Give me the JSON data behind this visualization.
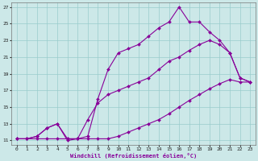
{
  "xlabel": "Windchill (Refroidissement éolien,°C)",
  "background_color": "#cce8e8",
  "grid_color": "#99cccc",
  "line_color": "#880099",
  "xlim_min": -0.5,
  "xlim_max": 23.5,
  "ylim_min": 10.5,
  "ylim_max": 27.5,
  "yticks": [
    11,
    13,
    15,
    17,
    19,
    21,
    23,
    25,
    27
  ],
  "xticks": [
    0,
    1,
    2,
    3,
    4,
    5,
    6,
    7,
    8,
    9,
    10,
    11,
    12,
    13,
    14,
    15,
    16,
    17,
    18,
    19,
    20,
    21,
    22,
    23
  ],
  "line1_x": [
    0,
    1,
    2,
    3,
    4,
    5,
    6,
    7,
    8,
    9,
    10,
    11,
    12,
    13,
    14,
    15,
    16,
    17,
    18,
    19,
    20,
    21,
    22,
    23
  ],
  "line1_y": [
    11.2,
    11.2,
    11.2,
    11.2,
    11.2,
    11.2,
    11.2,
    11.2,
    11.2,
    11.2,
    11.5,
    12.0,
    12.5,
    13.0,
    13.5,
    14.2,
    15.0,
    15.8,
    16.5,
    17.2,
    17.8,
    18.3,
    18.0,
    18.0
  ],
  "line2_x": [
    0,
    1,
    2,
    3,
    4,
    5,
    6,
    7,
    8,
    9,
    10,
    11,
    12,
    13,
    14,
    15,
    16,
    17,
    18,
    19,
    20,
    21,
    22,
    23
  ],
  "line2_y": [
    11.2,
    11.2,
    11.5,
    12.5,
    13.0,
    11.2,
    11.2,
    13.5,
    15.5,
    16.5,
    17.0,
    17.5,
    18.0,
    18.5,
    19.5,
    20.5,
    21.0,
    21.8,
    22.5,
    23.0,
    22.5,
    21.5,
    18.5,
    18.0
  ],
  "line3_x": [
    0,
    1,
    2,
    3,
    4,
    5,
    6,
    7,
    8,
    9,
    10,
    11,
    12,
    13,
    14,
    15,
    16,
    17,
    18,
    19,
    20,
    21,
    22,
    23
  ],
  "line3_y": [
    11.2,
    11.2,
    11.5,
    12.5,
    13.0,
    11.0,
    11.2,
    11.5,
    16.0,
    19.5,
    21.5,
    22.0,
    22.5,
    23.5,
    24.5,
    25.2,
    27.0,
    25.2,
    25.2,
    24.0,
    23.0,
    21.5,
    18.5,
    18.0
  ]
}
